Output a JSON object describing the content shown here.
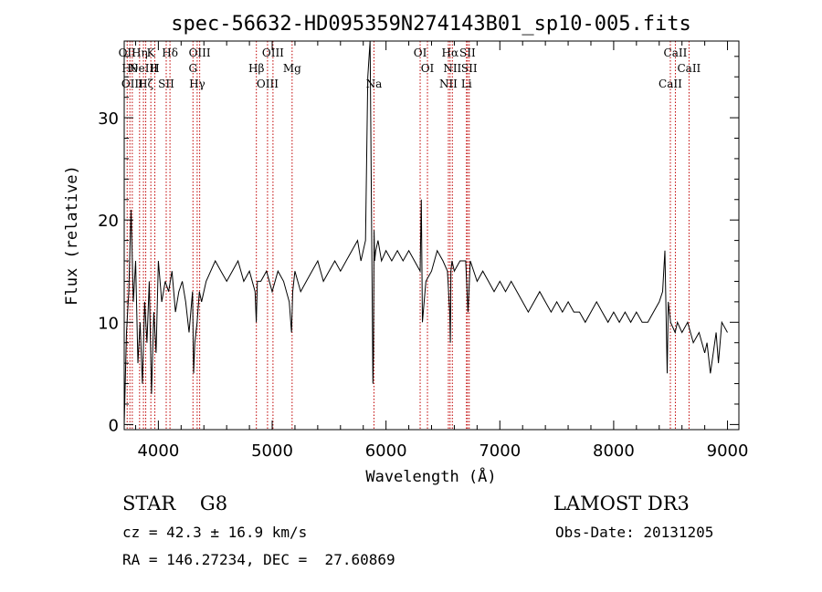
{
  "chart_data": {
    "type": "line",
    "title": "spec-56632-HD095359N274143B01_sp10-005.fits",
    "xlabel": "Wavelength (Å)",
    "ylabel": "Flux (relative)",
    "xlim": [
      3700,
      9100
    ],
    "ylim": [
      -0.5,
      37.5
    ],
    "xticks": [
      4000,
      5000,
      6000,
      7000,
      8000,
      9000
    ],
    "yticks": [
      0,
      10,
      20,
      30
    ],
    "grid": false,
    "series": [
      {
        "x": [
          3700,
          3720,
          3740,
          3760,
          3780,
          3800,
          3820,
          3840,
          3860,
          3880,
          3900,
          3920,
          3940,
          3960,
          3980,
          4000,
          4030,
          4060,
          4090,
          4120,
          4150,
          4180,
          4210,
          4240,
          4270,
          4300,
          4310,
          4320,
          4340,
          4360,
          4380,
          4420,
          4460,
          4500,
          4550,
          4600,
          4650,
          4700,
          4750,
          4800,
          4850,
          4860,
          4870,
          4900,
          4950,
          5000,
          5050,
          5100,
          5150,
          5170,
          5180,
          5200,
          5250,
          5300,
          5350,
          5400,
          5450,
          5500,
          5550,
          5600,
          5650,
          5700,
          5750,
          5780,
          5800,
          5820,
          5840,
          5860,
          5875,
          5885,
          5890,
          5895,
          5900,
          5910,
          5930,
          5960,
          6000,
          6050,
          6100,
          6150,
          6200,
          6250,
          6300,
          6310,
          6320,
          6350,
          6400,
          6450,
          6500,
          6540,
          6560,
          6565,
          6570,
          6580,
          6600,
          6650,
          6700,
          6720,
          6740,
          6800,
          6850,
          6900,
          6950,
          7000,
          7050,
          7100,
          7150,
          7200,
          7250,
          7300,
          7350,
          7400,
          7450,
          7500,
          7550,
          7600,
          7650,
          7700,
          7750,
          7800,
          7850,
          7900,
          7950,
          8000,
          8050,
          8100,
          8150,
          8200,
          8250,
          8300,
          8350,
          8400,
          8430,
          8450,
          8470,
          8480,
          8500,
          8540,
          8560,
          8600,
          8650,
          8700,
          8750,
          8800,
          8820,
          8850,
          8900,
          8920,
          8950,
          9000
        ],
        "values": [
          0,
          9,
          13,
          21,
          12,
          16,
          6,
          10,
          4,
          12,
          8,
          14,
          3,
          11,
          7,
          16,
          12,
          14,
          13,
          15,
          11,
          13,
          14,
          12,
          9,
          13,
          5,
          8,
          10,
          13,
          12,
          14,
          15,
          16,
          15,
          14,
          15,
          16,
          14,
          15,
          13,
          10,
          14,
          14,
          15,
          13,
          15,
          14,
          12,
          9,
          13,
          15,
          13,
          14,
          15,
          16,
          14,
          15,
          16,
          15,
          16,
          17,
          18,
          16,
          17,
          18,
          34,
          38,
          17,
          4,
          7,
          19,
          16,
          17,
          18,
          16,
          17,
          16,
          17,
          16,
          17,
          16,
          15,
          22,
          10,
          14,
          15,
          17,
          16,
          15,
          11,
          8,
          15,
          16,
          15,
          16,
          16,
          11,
          16,
          14,
          15,
          14,
          13,
          14,
          13,
          14,
          13,
          12,
          11,
          12,
          13,
          12,
          11,
          12,
          11,
          12,
          11,
          11,
          10,
          11,
          12,
          11,
          10,
          11,
          10,
          11,
          10,
          11,
          10,
          10,
          11,
          12,
          13,
          17,
          5,
          12,
          10,
          9,
          10,
          9,
          10,
          8,
          9,
          7,
          8,
          5,
          9,
          6,
          10,
          9
        ]
      }
    ],
    "line_markers": [
      {
        "w": 3726,
        "label": "OII"
      },
      {
        "w": 3750,
        "label": "Hθ"
      },
      {
        "w": 3771,
        "label": "OIII"
      },
      {
        "w": 3835,
        "label": "Hη"
      },
      {
        "w": 3869,
        "label": "NeIII"
      },
      {
        "w": 3889,
        "label": "Hζ"
      },
      {
        "w": 3934,
        "label": "K"
      },
      {
        "w": 3969,
        "label": "H"
      },
      {
        "w": 4069,
        "label": "SII"
      },
      {
        "w": 4102,
        "label": "Hδ"
      },
      {
        "w": 4304,
        "label": "G"
      },
      {
        "w": 4341,
        "label": "Hγ"
      },
      {
        "w": 4363,
        "label": "OIII"
      },
      {
        "w": 4861,
        "label": "Hβ"
      },
      {
        "w": 4959,
        "label": "OIII"
      },
      {
        "w": 5007,
        "label": "OIII"
      },
      {
        "w": 5175,
        "label": "Mg"
      },
      {
        "w": 5894,
        "label": "Na"
      },
      {
        "w": 6300,
        "label": "OI"
      },
      {
        "w": 6364,
        "label": "OI"
      },
      {
        "w": 6548,
        "label": "NII"
      },
      {
        "w": 6563,
        "label": "Hα"
      },
      {
        "w": 6583,
        "label": "NII"
      },
      {
        "w": 6707,
        "label": "Li"
      },
      {
        "w": 6716,
        "label": "SII"
      },
      {
        "w": 6731,
        "label": "SII"
      },
      {
        "w": 8498,
        "label": "CaII"
      },
      {
        "w": 8542,
        "label": "CaII"
      },
      {
        "w": 8662,
        "label": "CaII"
      }
    ],
    "marker_color": "#c00000"
  },
  "info": {
    "class": "STAR    G8",
    "survey": "LAMOST DR3",
    "cz": "cz = 42.3 ± 16.9 km/s",
    "obs_date": "Obs-Date: 20131205",
    "radec": "RA = 146.27234, DEC =  27.60869"
  }
}
